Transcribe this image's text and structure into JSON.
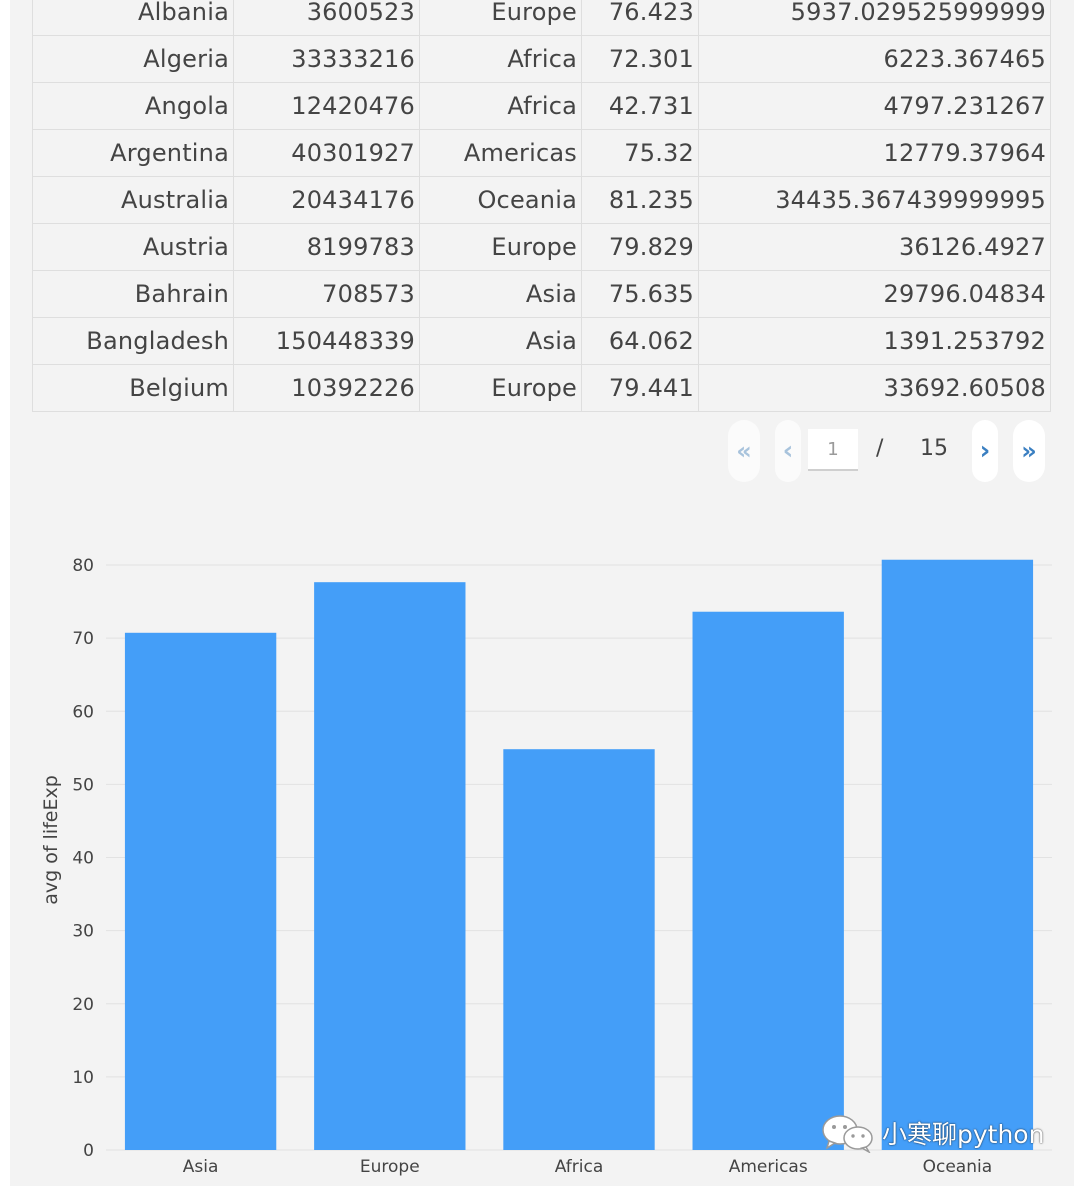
{
  "table": {
    "rows": [
      {
        "country": "Albania",
        "pop": "3600523",
        "continent": "Europe",
        "lifeExp": "76.423",
        "gdpPercap": "5937.029525999999"
      },
      {
        "country": "Algeria",
        "pop": "33333216",
        "continent": "Africa",
        "lifeExp": "72.301",
        "gdpPercap": "6223.367465"
      },
      {
        "country": "Angola",
        "pop": "12420476",
        "continent": "Africa",
        "lifeExp": "42.731",
        "gdpPercap": "4797.231267"
      },
      {
        "country": "Argentina",
        "pop": "40301927",
        "continent": "Americas",
        "lifeExp": "75.32",
        "gdpPercap": "12779.37964"
      },
      {
        "country": "Australia",
        "pop": "20434176",
        "continent": "Oceania",
        "lifeExp": "81.235",
        "gdpPercap": "34435.367439999995"
      },
      {
        "country": "Austria",
        "pop": "8199783",
        "continent": "Europe",
        "lifeExp": "79.829",
        "gdpPercap": "36126.4927"
      },
      {
        "country": "Bahrain",
        "pop": "708573",
        "continent": "Asia",
        "lifeExp": "75.635",
        "gdpPercap": "29796.04834"
      },
      {
        "country": "Bangladesh",
        "pop": "150448339",
        "continent": "Asia",
        "lifeExp": "64.062",
        "gdpPercap": "1391.253792"
      },
      {
        "country": "Belgium",
        "pop": "10392226",
        "continent": "Europe",
        "lifeExp": "79.441",
        "gdpPercap": "33692.60508"
      }
    ]
  },
  "pagination": {
    "first_icon": "«",
    "prev_icon": "‹",
    "current_page": "1",
    "separator": "/",
    "total_pages": "15",
    "next_icon": "›",
    "last_icon": "»"
  },
  "chart_data": {
    "type": "bar",
    "categories": [
      "Asia",
      "Europe",
      "Africa",
      "Americas",
      "Oceania"
    ],
    "values": [
      70.73,
      77.65,
      54.81,
      73.61,
      80.72
    ],
    "title": "",
    "xlabel": "",
    "ylabel": "avg of lifeExp",
    "ylim": [
      0,
      80
    ],
    "yticks": [
      0,
      10,
      20,
      30,
      40,
      50,
      60,
      70,
      80
    ],
    "bar_color": "#449ef8",
    "grid": true
  },
  "watermark": {
    "icon": "wechat-icon",
    "text": "小寒聊python"
  },
  "colors": {
    "background": "#f3f3f3",
    "grid": "#e2e2e2",
    "text": "#444444",
    "accent": "#3a7fc1"
  }
}
